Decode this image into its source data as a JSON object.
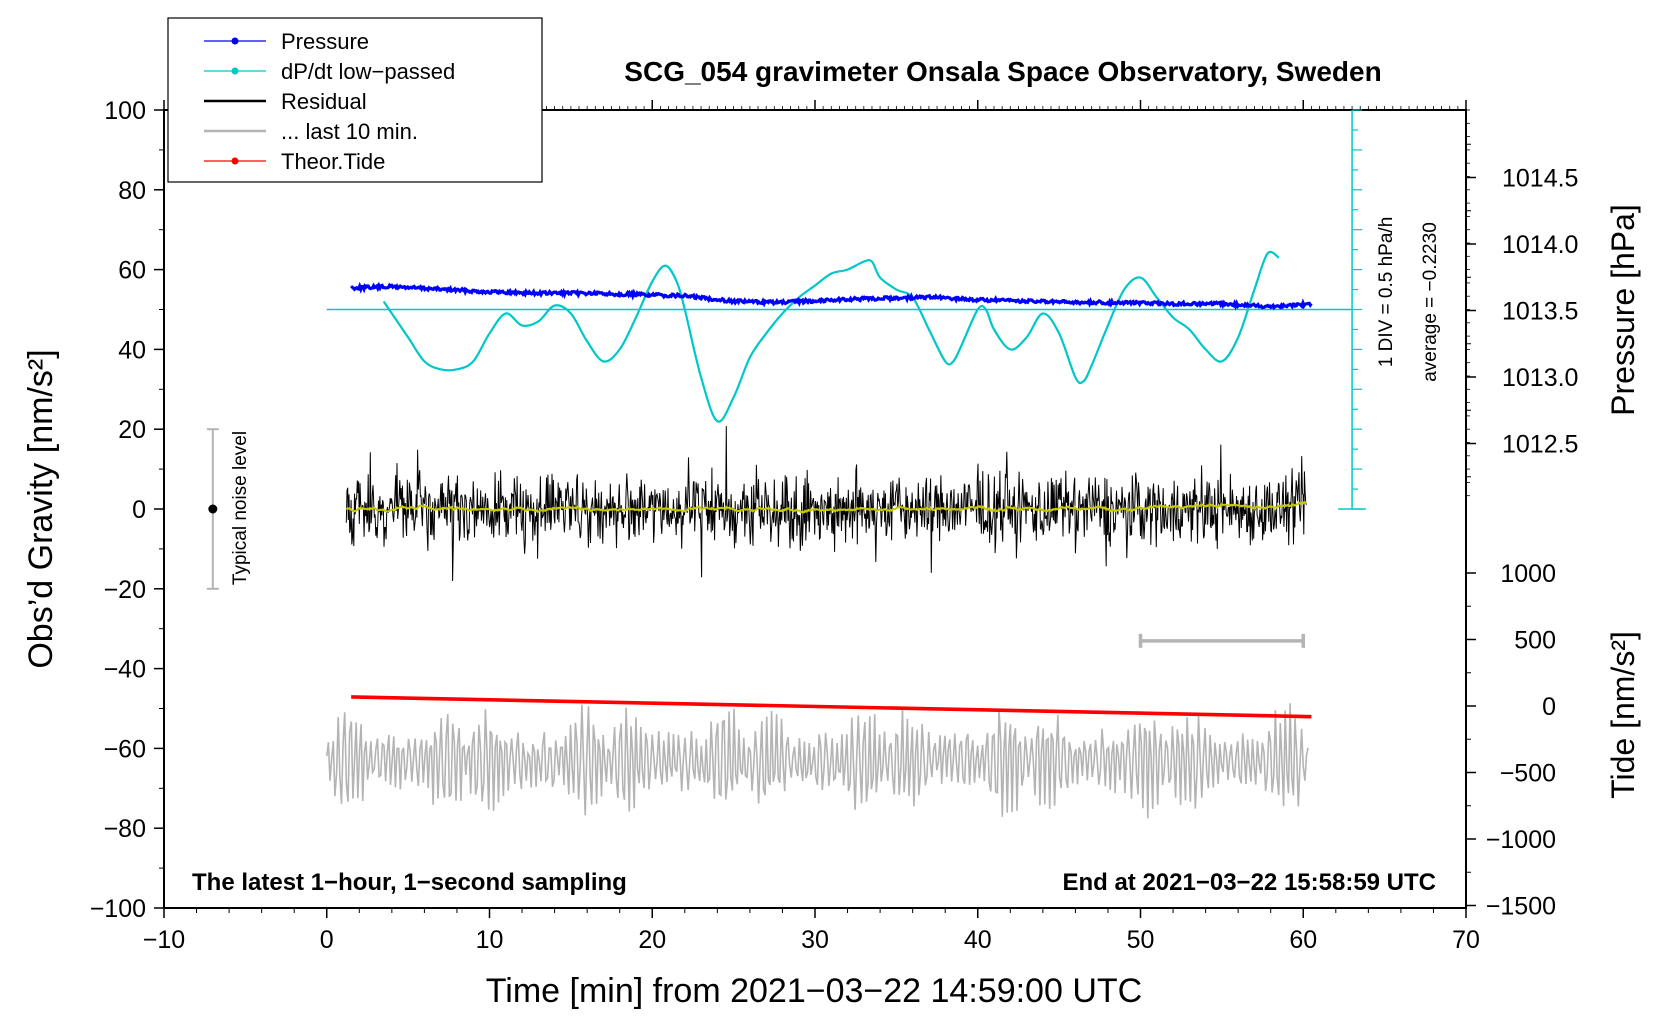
{
  "chart_data": {
    "type": "line",
    "title": "SCG_054 gravimeter Onsala Space Observatory, Sweden",
    "xlabel": "Time [min] from 2021−03−22 14:59:00 UTC",
    "ylabel_left": "Obs’d Gravity [nm/s²]",
    "ylabel_right_pressure": "Pressure [hPa]",
    "ylabel_right_tide": "Tide [nm/s²]",
    "xlim": [
      -10,
      70
    ],
    "ylim": [
      -100,
      100
    ],
    "pressure_ylim": [
      1012.0,
      1015.0
    ],
    "tide_ylim": [
      -1500,
      1500
    ],
    "x_ticks": [
      -10,
      0,
      10,
      20,
      30,
      40,
      50,
      60,
      70
    ],
    "x_tick_labels": [
      "−10",
      "0",
      "10",
      "20",
      "30",
      "40",
      "50",
      "60",
      "70"
    ],
    "y_ticks": [
      100,
      80,
      60,
      40,
      20,
      0,
      -20,
      -40,
      -60,
      -80,
      -100
    ],
    "y_tick_labels": [
      "100",
      "80",
      "60",
      "40",
      "20",
      "0",
      "−20",
      "−40",
      "−60",
      "−80",
      "−100"
    ],
    "pressure_ticks": [
      1014.5,
      1014.0,
      1013.5,
      1013.0,
      1012.5
    ],
    "pressure_tick_labels": [
      "1014.5",
      "1014.0",
      "1013.5",
      "1013.0",
      "1012.5"
    ],
    "tide_ticks": [
      1000,
      500,
      0,
      -500,
      -1000,
      -1500
    ],
    "tide_tick_labels": [
      "1000",
      "500",
      "0",
      "−500",
      "−1000",
      "−1500"
    ],
    "legend": [
      {
        "label": "Pressure",
        "color": "#0000ff",
        "marker": true
      },
      {
        "label": "dP/dt low−passed",
        "color": "#00c8c8",
        "marker": true
      },
      {
        "label": "Residual",
        "color": "#000000",
        "marker": false
      },
      {
        "label": "... last 10 min.",
        "color": "#b4b4b4",
        "marker": false
      },
      {
        "label": "Theor.Tide",
        "color": "#ff0000",
        "marker": true
      }
    ],
    "series": {
      "pressure": {
        "name": "Pressure",
        "color": "#0000ff",
        "x": [
          1.5,
          4,
          7,
          10,
          13,
          16,
          19,
          22,
          25,
          28,
          31,
          34,
          37,
          40,
          43,
          46,
          49,
          52,
          55,
          58,
          60.5
        ],
        "y": [
          1013.67,
          1013.68,
          1013.66,
          1013.64,
          1013.63,
          1013.63,
          1013.62,
          1013.61,
          1013.57,
          1013.56,
          1013.58,
          1013.59,
          1013.6,
          1013.58,
          1013.57,
          1013.56,
          1013.56,
          1013.55,
          1013.55,
          1013.53,
          1013.55
        ]
      },
      "dpdt": {
        "name": "dP/dt low−passed",
        "color": "#00c8c8",
        "average_line": 50,
        "x": [
          3.5,
          5,
          6,
          7,
          8,
          9,
          10,
          11,
          12,
          13,
          14,
          15,
          16,
          17,
          18,
          19,
          20,
          20.8,
          21.5,
          22,
          23,
          24,
          25,
          26,
          27,
          28,
          29,
          30,
          31,
          32,
          33,
          33.5,
          34,
          35,
          36,
          37,
          38,
          38.5,
          39,
          40,
          40.5,
          41,
          42,
          43,
          44,
          45,
          46,
          46.5,
          47,
          48,
          49,
          50,
          51,
          52,
          53,
          54,
          55,
          56,
          57,
          57.8,
          58.5
        ],
        "y": [
          52,
          43,
          37,
          35,
          35,
          37,
          44,
          49,
          46,
          47,
          51,
          49,
          42,
          37,
          40,
          48,
          57,
          61,
          57,
          50,
          33,
          22,
          28,
          38,
          44,
          49,
          53,
          56,
          59,
          60,
          62,
          62,
          58,
          55,
          53,
          45,
          37,
          37,
          41,
          50,
          50,
          45,
          40,
          43,
          49,
          44,
          33,
          32,
          36,
          46,
          55,
          58,
          53,
          48,
          45,
          40,
          37,
          43,
          55,
          64,
          63
        ]
      },
      "residual": {
        "name": "Residual",
        "color": "#000000",
        "x_range": [
          1.2,
          60.2
        ],
        "amplitude": 15,
        "low_passed_color": "#c8c800"
      },
      "tide": {
        "name": "Theor.Tide",
        "color": "#ff0000",
        "x": [
          1.5,
          60.5
        ],
        "y": [
          68,
          -80
        ]
      },
      "last_10_min": {
        "name": "... last 10 min.",
        "color": "#b4b4b4",
        "x_range": [
          0,
          60.3
        ],
        "center": -63,
        "amplitude": 14,
        "window_bar": [
          50,
          60
        ],
        "window_bar_y_tide": 490
      }
    },
    "noise_bar": {
      "x": -7,
      "low": -20,
      "high": 20,
      "label": "Typical noise level"
    },
    "pressure_scale": {
      "label_div": "1 DIV = 0.5 hPa/h",
      "label_avg": "average = −0.2230"
    },
    "footer_left": "The latest 1−hour, 1−second sampling",
    "footer_right": "End at 2021−03−22 15:58:59 UTC"
  }
}
